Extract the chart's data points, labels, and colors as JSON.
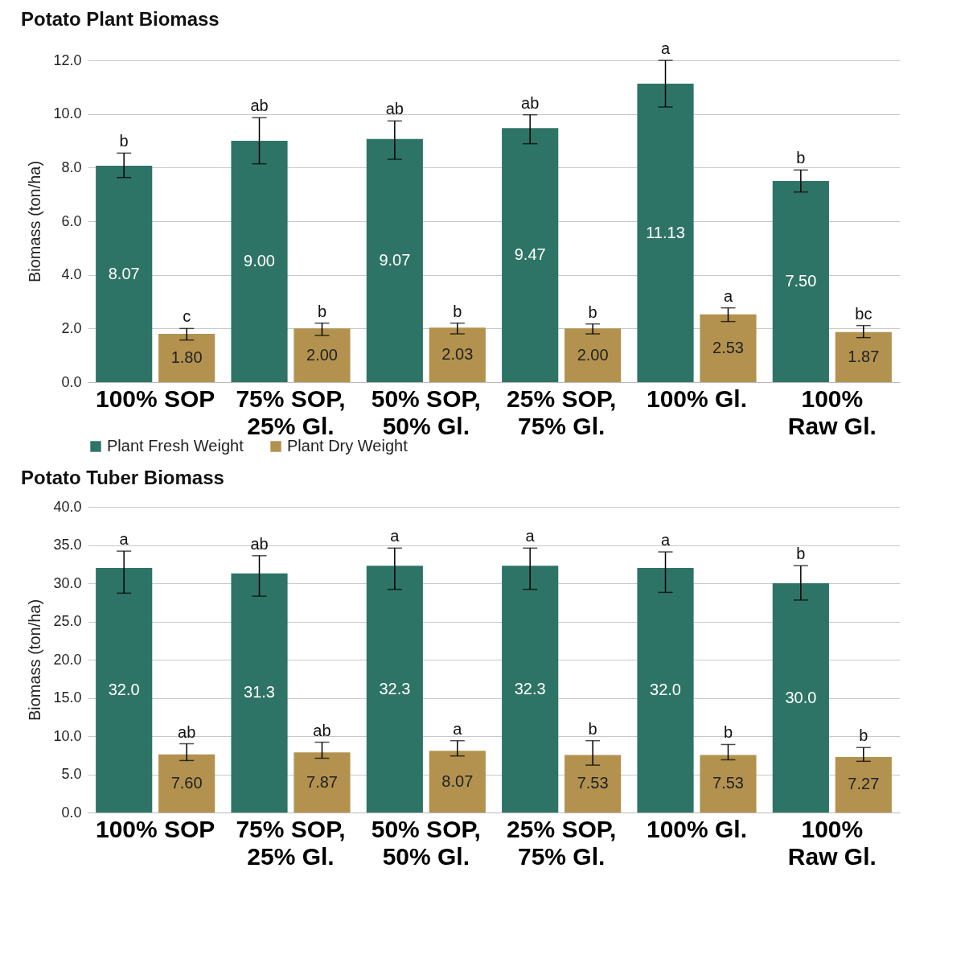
{
  "chart_data": [
    {
      "type": "bar",
      "title": "Potato Plant Biomass",
      "ylabel": "Biomass (ton/ha)",
      "categories": [
        "100% SOP",
        "75% SOP,\n25% Gl.",
        "50% SOP,\n50% Gl.",
        "25% SOP,\n75% Gl.",
        "100% Gl.",
        "100%\nRaw Gl."
      ],
      "series": [
        {
          "name": "Plant Fresh Weight",
          "color": "#2e7466",
          "values": [
            8.07,
            9.0,
            9.07,
            9.47,
            11.13,
            7.5
          ],
          "value_labels": [
            "8.07",
            "9.00",
            "9.07",
            "9.47",
            "11.13",
            "7.50"
          ],
          "errors": [
            [
              7.63,
              8.54
            ],
            [
              8.14,
              9.86
            ],
            [
              8.31,
              9.74
            ],
            [
              8.89,
              9.97
            ],
            [
              10.26,
              12.0
            ],
            [
              7.09,
              7.91
            ]
          ]
        },
        {
          "name": "Plant Dry Weight",
          "color": "#b3924f",
          "values": [
            1.8,
            2.0,
            2.03,
            2.0,
            2.53,
            1.87
          ],
          "value_labels": [
            "1.80",
            "2.00",
            "2.03",
            "2.00",
            "2.53",
            "1.87"
          ],
          "errors": [
            [
              1.57,
              2.0
            ],
            [
              1.74,
              2.2
            ],
            [
              1.8,
              2.2
            ],
            [
              1.8,
              2.17
            ],
            [
              2.26,
              2.77
            ],
            [
              1.66,
              2.11
            ]
          ]
        }
      ],
      "ylim": [
        0,
        12
      ],
      "yticks": [
        {
          "value": 0,
          "label": "0.0"
        },
        {
          "value": 2,
          "label": "2.0"
        },
        {
          "value": 4,
          "label": "4.0"
        },
        {
          "value": 6,
          "label": "6.0"
        },
        {
          "value": 8,
          "label": "8.0"
        },
        {
          "value": 10,
          "label": "10.0"
        },
        {
          "value": 12,
          "label": "12.0"
        }
      ],
      "grid": "y",
      "legend": "bottom",
      "annotations": [
        "b",
        "c",
        "ab",
        "b",
        "ab",
        "b",
        "ab",
        "b",
        "a",
        "a",
        "b",
        "bc"
      ]
    },
    {
      "type": "bar",
      "title": "Potato Tuber Biomass",
      "ylabel": "Biomass (ton/ha)",
      "categories": [
        "100% SOP",
        "75% SOP,\n25% Gl.",
        "50% SOP,\n50% Gl.",
        "25% SOP,\n75% Gl.",
        "100% Gl.",
        "100%\nRaw Gl."
      ],
      "series": [
        {
          "color": "#2e7466",
          "values": [
            32.0,
            31.3,
            32.3,
            32.3,
            32.0,
            30.0
          ],
          "value_labels": [
            "32.0",
            "31.3",
            "32.3",
            "32.3",
            "32.0",
            "30.0"
          ],
          "errors": [
            [
              28.7,
              34.2
            ],
            [
              28.3,
              33.6
            ],
            [
              29.2,
              34.6
            ],
            [
              29.2,
              34.6
            ],
            [
              28.8,
              34.1
            ],
            [
              27.8,
              32.3
            ]
          ]
        },
        {
          "color": "#b3924f",
          "values": [
            7.6,
            7.87,
            8.07,
            7.53,
            7.53,
            7.27
          ],
          "value_labels": [
            "7.60",
            "7.87",
            "8.07",
            "7.53",
            "7.53",
            "7.27"
          ],
          "errors": [
            [
              6.8,
              9.0
            ],
            [
              7.1,
              9.2
            ],
            [
              7.4,
              9.4
            ],
            [
              6.2,
              9.4
            ],
            [
              6.9,
              8.9
            ],
            [
              6.7,
              8.5
            ]
          ]
        }
      ],
      "ylim": [
        0,
        40
      ],
      "yticks": [
        {
          "value": 0,
          "label": "0.0"
        },
        {
          "value": 5,
          "label": "5.0"
        },
        {
          "value": 10,
          "label": "10.0"
        },
        {
          "value": 15,
          "label": "15.0"
        },
        {
          "value": 20,
          "label": "20.0"
        },
        {
          "value": 25,
          "label": "25.0"
        },
        {
          "value": 30,
          "label": "30.0"
        },
        {
          "value": 35,
          "label": "35.0"
        },
        {
          "value": 40,
          "label": "40.0"
        }
      ],
      "grid": "y",
      "annotations": [
        "a",
        "ab",
        "ab",
        "ab",
        "a",
        "a",
        "a",
        "b",
        "a",
        "b",
        "b",
        "b"
      ]
    }
  ]
}
